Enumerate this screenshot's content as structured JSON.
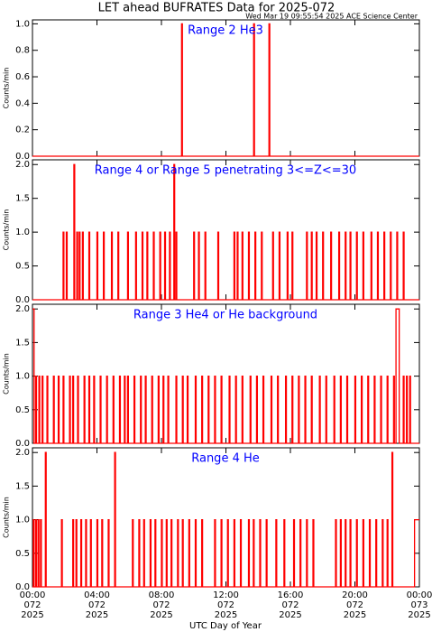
{
  "title": "LET ahead BUFRATES Data for 2025-072",
  "timestamp": "Wed Mar 19 09:55:54 2025 ACE Science Center",
  "x_label": "UTC Day of Year",
  "chart_data": [
    {
      "type": "line",
      "title": "Range 2 He3",
      "y_label": "Counts/min",
      "xlim": [
        0,
        24
      ],
      "xticks": [
        0,
        4,
        8,
        12,
        16,
        20,
        24
      ],
      "ylim": [
        0,
        1.03
      ],
      "yticks": [
        {
          "value": 0,
          "label": "0.0"
        },
        {
          "value": 0.2,
          "label": "0.2"
        },
        {
          "value": 0.4,
          "label": "0.4"
        },
        {
          "value": 0.6,
          "label": "0.6"
        },
        {
          "value": 0.8,
          "label": "0.8"
        },
        {
          "value": 1,
          "label": "1.0"
        }
      ],
      "series": [
        {
          "color": "#ff0000",
          "x": [
            0,
            9.25,
            9.3,
            13.72,
            13.77,
            14.67,
            14.72,
            24
          ],
          "values": [
            0,
            1,
            0,
            1,
            0,
            1,
            0,
            0
          ]
        }
      ]
    },
    {
      "type": "line",
      "title": "Range 4 or Range 5 penetrating 3<=Z<=30",
      "y_label": "Counts/min",
      "xlim": [
        0,
        24
      ],
      "xticks": [
        0,
        4,
        8,
        12,
        16,
        20,
        24
      ],
      "ylim": [
        0,
        2.07
      ],
      "yticks": [
        {
          "value": 0,
          "label": "0.0"
        },
        {
          "value": 0.5,
          "label": "0.5"
        },
        {
          "value": 1,
          "label": "1.0"
        },
        {
          "value": 1.5,
          "label": "1.5"
        },
        {
          "value": 2,
          "label": "2.0"
        }
      ],
      "series": [
        {
          "color": "#ff0000",
          "x": [
            0,
            1.9,
            1.95,
            2.1,
            2.15,
            2.57,
            2.62,
            2.75,
            2.8,
            2.9,
            2.95,
            3.1,
            3.15,
            3.5,
            3.55,
            4.0,
            4.05,
            4.4,
            4.45,
            4.9,
            4.95,
            5.3,
            5.35,
            5.9,
            5.95,
            6.4,
            6.45,
            6.8,
            6.85,
            7.1,
            7.15,
            7.5,
            7.55,
            7.9,
            7.95,
            8.2,
            8.25,
            8.5,
            8.55,
            8.77,
            8.82,
            8.9,
            8.95,
            10.0,
            10.05,
            10.3,
            10.35,
            10.7,
            10.75,
            11.5,
            11.55,
            12.5,
            12.55,
            12.7,
            12.75,
            13.0,
            13.05,
            13.4,
            13.45,
            13.8,
            13.85,
            14.2,
            14.25,
            14.9,
            14.95,
            15.3,
            15.35,
            15.8,
            15.85,
            16.1,
            16.15,
            17.0,
            17.05,
            17.3,
            17.35,
            17.6,
            17.65,
            18.0,
            18.05,
            18.5,
            18.55,
            19.0,
            19.05,
            19.4,
            19.45,
            19.7,
            19.75,
            20.1,
            20.15,
            20.5,
            20.55,
            21.0,
            21.05,
            21.4,
            21.45,
            21.8,
            21.85,
            22.2,
            22.25,
            22.6,
            22.65,
            23.0,
            23.05,
            24
          ],
          "values": [
            0,
            1,
            0,
            1,
            0,
            2,
            0,
            1,
            0,
            1,
            0,
            1,
            0,
            1,
            0,
            1,
            0,
            1,
            0,
            1,
            0,
            1,
            0,
            1,
            0,
            1,
            0,
            1,
            0,
            1,
            0,
            1,
            0,
            1,
            0,
            1,
            0,
            1,
            0,
            2,
            0,
            1,
            0,
            1,
            0,
            1,
            0,
            1,
            0,
            1,
            0,
            1,
            0,
            1,
            0,
            1,
            0,
            1,
            0,
            1,
            0,
            1,
            0,
            1,
            0,
            1,
            0,
            1,
            0,
            1,
            0,
            1,
            0,
            1,
            0,
            1,
            0,
            1,
            0,
            1,
            0,
            1,
            0,
            1,
            0,
            1,
            0,
            1,
            0,
            1,
            0,
            1,
            0,
            1,
            0,
            1,
            0,
            1,
            0,
            1,
            0,
            1,
            0,
            0
          ]
        }
      ]
    },
    {
      "type": "line",
      "title": "Range 3 He4 or He background",
      "y_label": "Counts/min",
      "xlim": [
        0,
        24
      ],
      "xticks": [
        0,
        4,
        8,
        12,
        16,
        20,
        24
      ],
      "ylim": [
        0,
        2.07
      ],
      "yticks": [
        {
          "value": 0,
          "label": "0.0"
        },
        {
          "value": 0.5,
          "label": "0.5"
        },
        {
          "value": 1,
          "label": "1.0"
        },
        {
          "value": 1.5,
          "label": "1.5"
        },
        {
          "value": 2,
          "label": "2.0"
        }
      ],
      "series": [
        {
          "color": "#ff0000",
          "x": [
            0,
            0.1,
            0.2,
            0.25,
            0.4,
            0.45,
            0.6,
            0.65,
            0.9,
            0.95,
            1.3,
            1.35,
            1.6,
            1.65,
            1.9,
            1.95,
            2.3,
            2.35,
            2.5,
            2.55,
            2.8,
            2.85,
            3.2,
            3.25,
            3.5,
            3.55,
            3.8,
            3.85,
            4.2,
            4.25,
            4.6,
            4.65,
            5.0,
            5.05,
            5.4,
            5.45,
            5.7,
            5.75,
            5.9,
            5.95,
            6.3,
            6.35,
            6.7,
            6.75,
            7.0,
            7.05,
            7.4,
            7.45,
            7.8,
            7.85,
            8.1,
            8.15,
            8.4,
            8.45,
            8.9,
            8.95,
            9.3,
            9.35,
            9.6,
            9.65,
            10.1,
            10.15,
            10.5,
            10.55,
            10.9,
            10.95,
            11.3,
            11.35,
            11.7,
            11.75,
            12.2,
            12.25,
            12.6,
            12.65,
            13.0,
            13.05,
            13.5,
            13.55,
            13.9,
            13.95,
            14.3,
            14.35,
            14.8,
            14.85,
            15.2,
            15.25,
            15.7,
            15.75,
            16.1,
            16.15,
            16.5,
            16.55,
            16.9,
            16.95,
            17.3,
            17.35,
            17.8,
            17.85,
            18.2,
            18.25,
            18.7,
            18.75,
            19.1,
            19.15,
            19.5,
            19.55,
            20.0,
            20.05,
            20.4,
            20.45,
            20.8,
            20.85,
            21.2,
            21.25,
            21.6,
            21.65,
            22.0,
            22.05,
            22.4,
            22.45,
            22.55,
            22.75,
            23.0,
            23.05,
            23.2,
            23.25,
            23.4,
            23.45,
            24
          ],
          "values": [
            2,
            0,
            1,
            0,
            1,
            0,
            1,
            0,
            1,
            0,
            1,
            0,
            1,
            0,
            1,
            0,
            1,
            0,
            1,
            0,
            1,
            0,
            1,
            0,
            1,
            0,
            1,
            0,
            1,
            0,
            1,
            0,
            1,
            0,
            1,
            0,
            1,
            0,
            1,
            0,
            1,
            0,
            1,
            0,
            1,
            0,
            1,
            0,
            1,
            0,
            1,
            0,
            1,
            0,
            1,
            0,
            1,
            0,
            1,
            0,
            1,
            0,
            1,
            0,
            1,
            0,
            1,
            0,
            1,
            0,
            1,
            0,
            1,
            0,
            1,
            0,
            1,
            0,
            1,
            0,
            1,
            0,
            1,
            0,
            1,
            0,
            1,
            0,
            1,
            0,
            1,
            0,
            1,
            0,
            1,
            0,
            1,
            0,
            1,
            0,
            1,
            0,
            1,
            0,
            1,
            0,
            1,
            0,
            1,
            0,
            1,
            0,
            1,
            0,
            1,
            0,
            1,
            0,
            1,
            0,
            2,
            0,
            1,
            0,
            1,
            0,
            1,
            0,
            0
          ]
        }
      ]
    },
    {
      "type": "line",
      "title": "Range 4 He",
      "y_label": "Counts/min",
      "xlim": [
        0,
        24
      ],
      "xticks": [
        {
          "value": 0,
          "label": "00:00",
          "day": "072",
          "year": "2025"
        },
        {
          "value": 4,
          "label": "04:00",
          "day": "072",
          "year": "2025"
        },
        {
          "value": 8,
          "label": "08:00",
          "day": "072",
          "year": "2025"
        },
        {
          "value": 12,
          "label": "12:00",
          "day": "072",
          "year": "2025"
        },
        {
          "value": 16,
          "label": "16:00",
          "day": "072",
          "year": "2025"
        },
        {
          "value": 20,
          "label": "20:00",
          "day": "072",
          "year": "2025"
        },
        {
          "value": 24,
          "label": "00:00",
          "day": "073",
          "year": "2025"
        }
      ],
      "ylim": [
        0,
        2.07
      ],
      "yticks": [
        {
          "value": 0,
          "label": "0.0"
        },
        {
          "value": 0.5,
          "label": "0.5"
        },
        {
          "value": 1,
          "label": "1.0"
        },
        {
          "value": 1.5,
          "label": "1.5"
        },
        {
          "value": 2,
          "label": "2.0"
        }
      ],
      "series": [
        {
          "color": "#ff0000",
          "x": [
            0,
            0.05,
            0.1,
            0.2,
            0.25,
            0.35,
            0.4,
            0.5,
            0.55,
            0.8,
            0.85,
            1.8,
            1.85,
            2.5,
            2.55,
            2.7,
            2.75,
            3.0,
            3.05,
            3.3,
            3.35,
            3.6,
            3.65,
            4.0,
            4.05,
            4.3,
            4.35,
            4.7,
            4.75,
            5.1,
            5.15,
            6.2,
            6.25,
            6.6,
            6.65,
            6.9,
            6.95,
            7.3,
            7.35,
            7.6,
            7.65,
            8.0,
            8.05,
            8.3,
            8.35,
            8.6,
            8.65,
            9.0,
            9.05,
            9.3,
            9.35,
            9.7,
            9.75,
            10.1,
            10.15,
            10.5,
            10.55,
            11.3,
            11.35,
            11.7,
            11.75,
            12.1,
            12.15,
            12.5,
            12.55,
            12.9,
            12.95,
            13.4,
            13.45,
            13.7,
            13.75,
            14.1,
            14.15,
            14.5,
            14.55,
            15.1,
            15.15,
            15.6,
            15.65,
            16.2,
            16.25,
            16.6,
            16.65,
            17.0,
            17.05,
            17.4,
            17.45,
            18.8,
            18.85,
            19.1,
            19.15,
            19.4,
            19.45,
            19.7,
            19.75,
            20.1,
            20.15,
            20.5,
            20.55,
            20.9,
            20.95,
            21.3,
            21.35,
            21.7,
            21.75,
            22.0,
            22.05,
            22.3,
            22.35,
            23.7,
            24
          ],
          "values": [
            0,
            1,
            0,
            1,
            0,
            1,
            0,
            1,
            0,
            2,
            0,
            1,
            0,
            1,
            0,
            1,
            0,
            1,
            0,
            1,
            0,
            1,
            0,
            1,
            0,
            1,
            0,
            1,
            0,
            2,
            0,
            1,
            0,
            1,
            0,
            1,
            0,
            1,
            0,
            1,
            0,
            1,
            0,
            1,
            0,
            1,
            0,
            1,
            0,
            1,
            0,
            1,
            0,
            1,
            0,
            1,
            0,
            1,
            0,
            1,
            0,
            1,
            0,
            1,
            0,
            1,
            0,
            1,
            0,
            1,
            0,
            1,
            0,
            1,
            0,
            1,
            0,
            1,
            0,
            1,
            0,
            1,
            0,
            1,
            0,
            1,
            0,
            1,
            0,
            1,
            0,
            1,
            0,
            1,
            0,
            1,
            0,
            1,
            0,
            1,
            0,
            1,
            0,
            1,
            0,
            1,
            0,
            2,
            0,
            1,
            1
          ]
        }
      ]
    }
  ]
}
